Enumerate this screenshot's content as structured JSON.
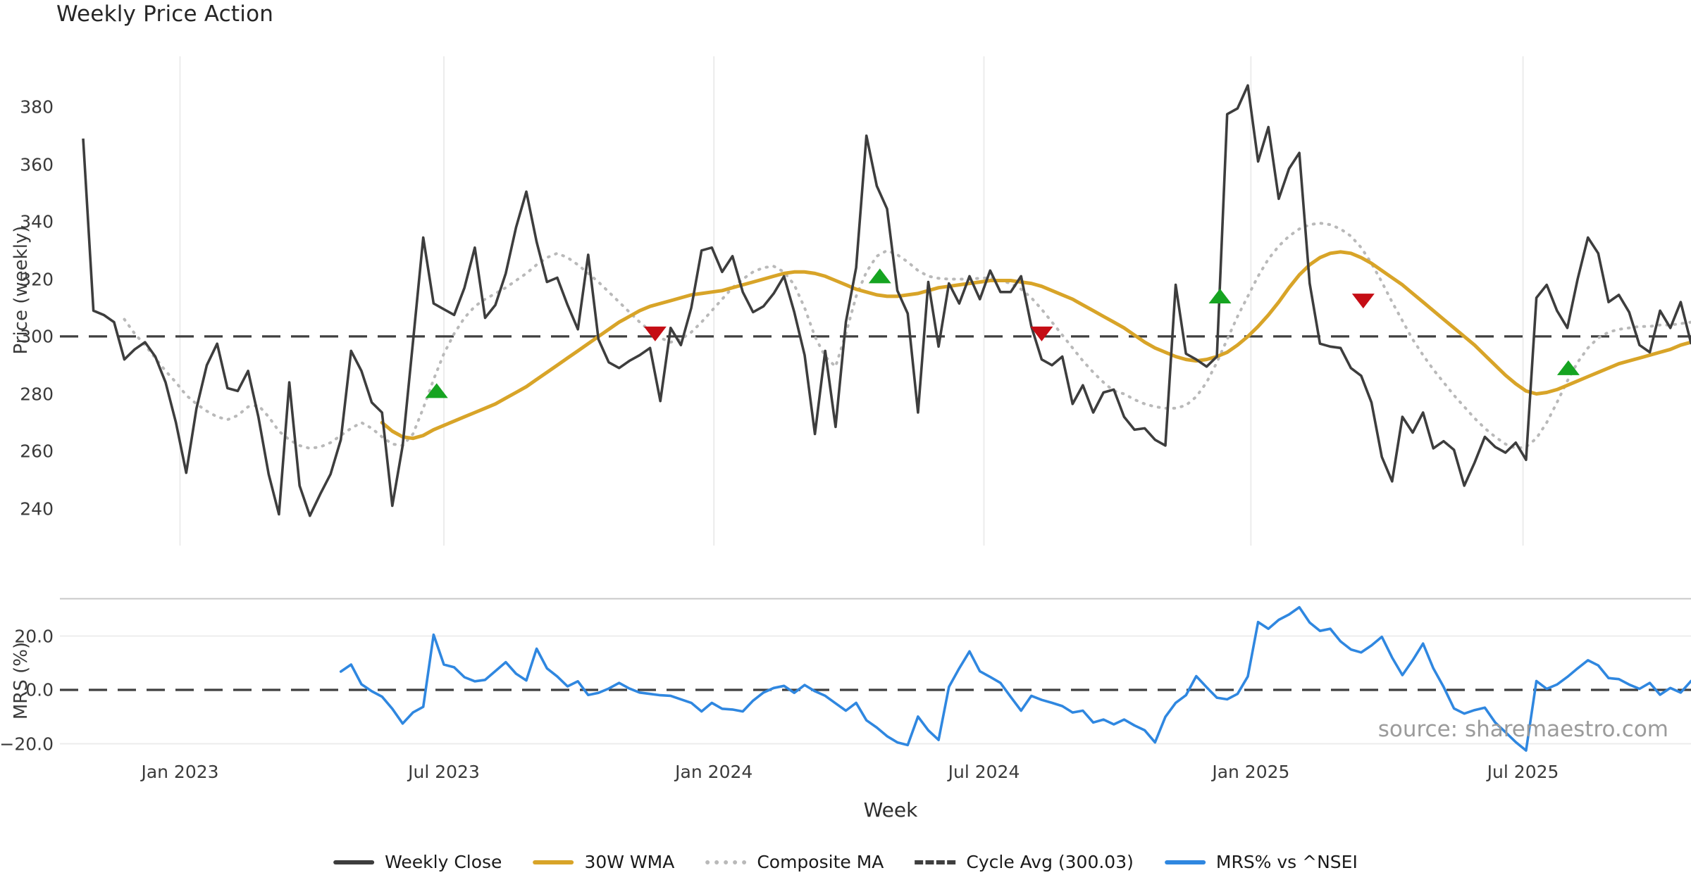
{
  "title": "Weekly Price Action",
  "watermark": "source: sharemaestro.com",
  "x_axis": {
    "title": "Week",
    "ticks": [
      {
        "label": "Jan 2023",
        "week": 9.4
      },
      {
        "label": "Jul 2023",
        "week": 35.0
      },
      {
        "label": "Jan 2024",
        "week": 61.2
      },
      {
        "label": "Jul 2024",
        "week": 87.4
      },
      {
        "label": "Jan 2025",
        "week": 113.3
      },
      {
        "label": "Jul 2025",
        "week": 139.7
      }
    ]
  },
  "panels": {
    "price": {
      "axis_title": "Price (weekly)",
      "yticks": [
        240,
        260,
        280,
        300,
        320,
        340,
        360,
        380
      ],
      "ylim": [
        227,
        398
      ]
    },
    "mrs": {
      "axis_title": "MRS (%)",
      "yticks": [
        {
          "label": "20.0",
          "value": 20
        },
        {
          "label": "0.0",
          "value": 0
        },
        {
          "label": "−20.0",
          "value": -20
        }
      ],
      "ylim": [
        -28.5,
        34
      ]
    }
  },
  "legend": {
    "items": [
      {
        "label": "Weekly Close",
        "swatch": "solid-dark"
      },
      {
        "label": "30W WMA",
        "swatch": "solid-gold"
      },
      {
        "label": "Composite MA",
        "swatch": "dotted-gray"
      },
      {
        "label": "Cycle Avg (300.03)",
        "swatch": "dashed-dark"
      },
      {
        "label": "MRS% vs ^NSEI",
        "swatch": "solid-blue"
      }
    ]
  },
  "colors": {
    "close": "#3d3d3d",
    "wma": "#d8a428",
    "composite": "#b9b9b9",
    "cycle_avg": "#3f3f3f",
    "mrs": "#2f87e0",
    "buy_marker": "#16a421",
    "sell_marker": "#c50d15",
    "grid": "#ececec",
    "panel_border": "#c8c8c8",
    "tick_text": "#3a3a3a"
  },
  "chart_data": [
    {
      "type": "line",
      "panel": "price",
      "title": "Weekly Price Action",
      "xlabel": "Week",
      "ylabel": "Price (weekly)",
      "x_unit": "week_index",
      "weeks_total": 157,
      "ylim": [
        227,
        398
      ],
      "grid": "vertical-only",
      "cycle_avg": 300.03,
      "series": [
        {
          "name": "Weekly Close",
          "style": "solid",
          "start_week": 0,
          "values": [
            369,
            309,
            307.5,
            305,
            292,
            295.5,
            298,
            293,
            284,
            270,
            252.5,
            275,
            290,
            297.5,
            282,
            281,
            288,
            272,
            252,
            238,
            284,
            248,
            237.5,
            245,
            252,
            264,
            295,
            288,
            277,
            273.5,
            241,
            262,
            298,
            334.5,
            311.5,
            309.5,
            307.5,
            317,
            331,
            306.5,
            311,
            322,
            338,
            350.5,
            333,
            319,
            320.5,
            311,
            302.5,
            328.5,
            299,
            291,
            289,
            291.5,
            293.5,
            296,
            277.5,
            303,
            297,
            310,
            330,
            331,
            322.5,
            328,
            315.5,
            308.5,
            310.5,
            315,
            321,
            308.5,
            293.5,
            266,
            295,
            268.5,
            305,
            324,
            370,
            352.5,
            344.5,
            316,
            308,
            273.5,
            319,
            296.5,
            318.5,
            311.5,
            321,
            313,
            323,
            315.5,
            315.5,
            321,
            303.5,
            292,
            290,
            293,
            276.5,
            283,
            273.5,
            280.5,
            281.5,
            272,
            267.5,
            268,
            264,
            262,
            318,
            294,
            292,
            289.5,
            293,
            377.5,
            379.5,
            387.5,
            361,
            373,
            348,
            358.5,
            364,
            318.5,
            297.5,
            296.5,
            296,
            289,
            286.3,
            277,
            258,
            249.5,
            272,
            266.5,
            273.5,
            261,
            263.5,
            260.5,
            248,
            256,
            265,
            261.5,
            259.5,
            263,
            257,
            313.5,
            318,
            309,
            303,
            320,
            334.5,
            329,
            312,
            314.5,
            308.5,
            297,
            294.5,
            309,
            303,
            312,
            297.7,
            313
          ]
        },
        {
          "name": "30W WMA",
          "style": "solid",
          "start_week": 29,
          "values": [
            270,
            267,
            265,
            264.5,
            265.5,
            267.5,
            269,
            270.5,
            272,
            273.5,
            275,
            276.5,
            278.5,
            280.5,
            282.5,
            285,
            287.5,
            290,
            292.5,
            295,
            297.5,
            300,
            302.5,
            305,
            307,
            309,
            310.5,
            311.5,
            312.5,
            313.5,
            314.5,
            315,
            315.5,
            316,
            317,
            318,
            319,
            320,
            321,
            322,
            322.5,
            322.5,
            322,
            321,
            319.5,
            318,
            316.5,
            315.5,
            314.5,
            314,
            314,
            314.5,
            315,
            316,
            317,
            317.5,
            318,
            318.5,
            319,
            319.5,
            319.5,
            319.5,
            319,
            318.5,
            317.5,
            316,
            314.5,
            313,
            311,
            309,
            307,
            305,
            303,
            300.5,
            298,
            296,
            294.5,
            293,
            292,
            291.5,
            292,
            293,
            294.5,
            297,
            300,
            303.5,
            307.5,
            312,
            317,
            321.5,
            325,
            327.5,
            329,
            329.5,
            329,
            327.5,
            325.5,
            323,
            320.5,
            318,
            315,
            312,
            309,
            306,
            303,
            300,
            297,
            293.5,
            290,
            286.5,
            283.5,
            281,
            280,
            280.5,
            281.5,
            283,
            284.5,
            286,
            287.5,
            289,
            290.5,
            291.5,
            292.5,
            293.5,
            294.5,
            295.5,
            297,
            298
          ]
        },
        {
          "name": "Composite MA",
          "style": "dotted",
          "start_week": 4,
          "values": [
            306,
            301,
            297,
            292.5,
            288,
            284,
            279.5,
            276.5,
            274,
            272,
            271,
            272.5,
            275.5,
            276,
            272,
            267,
            264,
            262,
            261,
            261.5,
            263,
            265.5,
            268,
            270,
            268,
            265,
            262.5,
            262,
            266,
            275,
            285,
            294,
            301,
            306.5,
            310.5,
            313,
            315,
            317,
            319.5,
            322,
            325,
            327.5,
            329,
            327.5,
            325,
            322,
            319,
            315.5,
            312,
            308.5,
            305,
            302,
            299.5,
            298,
            299,
            301.5,
            305,
            309,
            313,
            317,
            320,
            322.5,
            324,
            324.5,
            322.5,
            318,
            310,
            300,
            293,
            289.5,
            301,
            314,
            322.5,
            328,
            330,
            328.5,
            326,
            323,
            321,
            320.3,
            320,
            320,
            320,
            320.3,
            320.5,
            319.5,
            318.5,
            316.5,
            313.5,
            309.5,
            305,
            300.5,
            296,
            291.5,
            287.5,
            284,
            281,
            280,
            278,
            276.5,
            275.5,
            275,
            275,
            276,
            279,
            284,
            291,
            299,
            307,
            314,
            321,
            327,
            331.5,
            335,
            337.5,
            339,
            339.5,
            339,
            337.5,
            335,
            331,
            325.5,
            319,
            312,
            305.5,
            299,
            293.5,
            288.5,
            284,
            279.5,
            275.5,
            271.5,
            268,
            265,
            262.5,
            261,
            261.5,
            264.5,
            270,
            277,
            284.5,
            291,
            296,
            299.5,
            301.5,
            302.5,
            303,
            303.5,
            303.5,
            304,
            304,
            304.5,
            305
          ]
        },
        {
          "name": "Cycle Avg",
          "style": "dashed",
          "constant": 300.03
        }
      ],
      "signals": {
        "buy": [
          {
            "week": 34.3,
            "value": 281
          },
          {
            "week": 77.3,
            "value": 321
          },
          {
            "week": 110.3,
            "value": 314
          },
          {
            "week": 144.1,
            "value": 289
          }
        ],
        "sell": [
          {
            "week": 55.5,
            "value": 301
          },
          {
            "week": 93.0,
            "value": 301
          },
          {
            "week": 124.2,
            "value": 312.5
          }
        ]
      }
    },
    {
      "type": "line",
      "panel": "mrs",
      "ylabel": "MRS (%)",
      "x_unit": "week_index",
      "ylim": [
        -28.5,
        34
      ],
      "zero_line": "dashed",
      "hgrid": [
        20,
        -20
      ],
      "series": [
        {
          "name": "MRS% vs ^NSEI",
          "style": "solid",
          "start_week": 25,
          "values": [
            6.8,
            9.4,
            2.1,
            -0.5,
            -2.5,
            -7,
            -12.5,
            -8.4,
            -6.3,
            20.5,
            9.4,
            8.4,
            4.7,
            3.2,
            3.7,
            7,
            10.3,
            6,
            3.5,
            15.3,
            8,
            5,
            1.3,
            3.2,
            -1.9,
            -1.1,
            0.5,
            2.6,
            0.5,
            -1,
            -1.5,
            -2,
            -2.2,
            -3.5,
            -4.8,
            -8,
            -4.8,
            -7,
            -7.3,
            -8,
            -4,
            -1,
            0.7,
            1.5,
            -1.1,
            1.8,
            -0.5,
            -2.2,
            -5,
            -7.7,
            -4.8,
            -11.3,
            -14,
            -17.2,
            -19.5,
            -20.5,
            -9.9,
            -15,
            -18.6,
            1.1,
            8,
            14.3,
            6.9,
            4.8,
            2.6,
            -2.6,
            -7.7,
            -2.2,
            -3.7,
            -4.8,
            -6,
            -8.4,
            -7.7,
            -12.1,
            -11,
            -12.8,
            -11,
            -13.2,
            -15,
            -19.5,
            -10,
            -4.8,
            -2,
            5.1,
            1,
            -2.9,
            -3.5,
            -1.5,
            5,
            25.2,
            22.7,
            26,
            28,
            30.7,
            25,
            21.9,
            22.7,
            18,
            15,
            13.9,
            16.5,
            19.7,
            12,
            5.5,
            11,
            17.2,
            8,
            1.1,
            -6.9,
            -8.8,
            -7.5,
            -6.6,
            -12.1,
            -15.7,
            -19.4,
            -22.5,
            3.3,
            0.4,
            2,
            4.8,
            8,
            11,
            9.1,
            4.4,
            4,
            2,
            0.4,
            2.6,
            -1.8,
            0.7,
            -1,
            3.3
          ]
        }
      ]
    }
  ]
}
